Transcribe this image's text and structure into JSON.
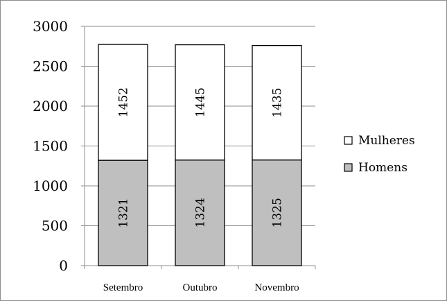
{
  "chart_data": {
    "type": "bar",
    "stacked": true,
    "categories": [
      "Setembro",
      "Outubro",
      "Novembro"
    ],
    "series": [
      {
        "name": "Homens",
        "values": [
          1321,
          1324,
          1325
        ],
        "color": "#bfbfbf"
      },
      {
        "name": "Mulheres",
        "values": [
          1452,
          1445,
          1435
        ],
        "color": "#ffffff"
      }
    ],
    "ylim": [
      0,
      3000
    ],
    "yticks": [
      "0",
      "500",
      "1000",
      "1500",
      "2000",
      "2500",
      "3000"
    ],
    "grid": true,
    "legend": "right",
    "legend_order": [
      "Mulheres",
      "Homens"
    ],
    "title": "",
    "xlabel": "",
    "ylabel": ""
  }
}
